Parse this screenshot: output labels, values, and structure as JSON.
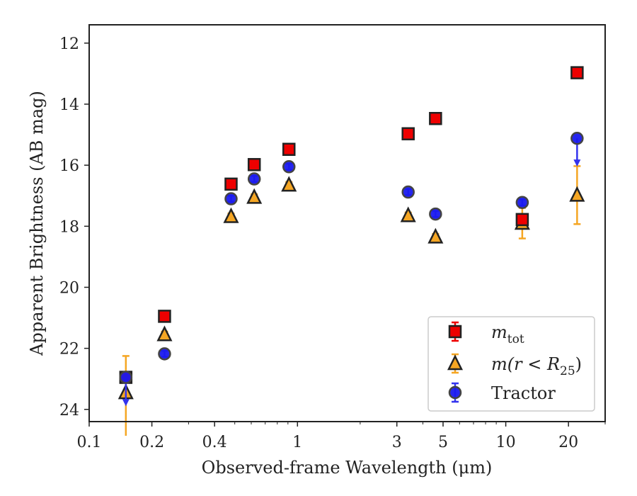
{
  "chart_data": {
    "type": "scatter",
    "xlabel": "Observed-frame Wavelength (μm)",
    "ylabel": "Apparent Brightness (AB mag)",
    "xscale": "log",
    "xlim": [
      0.1,
      30
    ],
    "ylim": [
      24.4,
      11.4
    ],
    "y_inverted": true,
    "x_ticks": [
      {
        "value": 0.1,
        "label": "0.1"
      },
      {
        "value": 0.2,
        "label": "0.2"
      },
      {
        "value": 0.4,
        "label": "0.4"
      },
      {
        "value": 1,
        "label": "1"
      },
      {
        "value": 3,
        "label": "3"
      },
      {
        "value": 5,
        "label": "5"
      },
      {
        "value": 10,
        "label": "10"
      },
      {
        "value": 20,
        "label": "20"
      }
    ],
    "y_ticks": [
      12,
      14,
      16,
      18,
      20,
      22,
      24
    ],
    "grid": false,
    "legend_position": "lower-right",
    "series": [
      {
        "name_main": "m",
        "name_sub": "tot",
        "marker": "square",
        "color": "#ee0000",
        "errcolor": "#ee0000",
        "points": [
          {
            "x": 0.15,
            "y": 22.95,
            "err": 0.1
          },
          {
            "x": 0.23,
            "y": 20.95,
            "err": 0.1
          },
          {
            "x": 0.48,
            "y": 16.62,
            "err": 0.1
          },
          {
            "x": 0.62,
            "y": 15.98,
            "err": 0.1
          },
          {
            "x": 0.91,
            "y": 15.48,
            "err": 0.1
          },
          {
            "x": 3.4,
            "y": 14.97,
            "err": 0.1
          },
          {
            "x": 4.6,
            "y": 14.47,
            "err": 0.1
          },
          {
            "x": 12.0,
            "y": 17.78,
            "err": 0.15
          },
          {
            "x": 22.0,
            "y": 12.97,
            "err": 0.1
          }
        ]
      },
      {
        "name_main": "m(r < R",
        "name_sub": "25",
        "name_tail": ")",
        "marker": "triangle",
        "color": "#f5a623",
        "errcolor": "#f5a623",
        "points": [
          {
            "x": 0.15,
            "y": 23.45,
            "err_low": 2.0,
            "err_high": 1.2
          },
          {
            "x": 0.23,
            "y": 21.55,
            "err": 0.1
          },
          {
            "x": 0.48,
            "y": 17.68,
            "err": 0.1
          },
          {
            "x": 0.62,
            "y": 17.05,
            "err": 0.1
          },
          {
            "x": 0.91,
            "y": 16.65,
            "err": 0.1
          },
          {
            "x": 3.4,
            "y": 17.65,
            "err": 0.1
          },
          {
            "x": 4.6,
            "y": 18.35,
            "err": 0.1
          },
          {
            "x": 12.0,
            "y": 17.9,
            "err_low": 0.5,
            "err_high": 0.5
          },
          {
            "x": 22.0,
            "y": 16.98,
            "err_low": 0.95,
            "err_high": 0.95
          }
        ]
      },
      {
        "name_main": "Tractor",
        "marker": "circle",
        "color": "#1a1aee",
        "errcolor": "#3333ee",
        "points": [
          {
            "x": 0.15,
            "y": 22.95,
            "upper_limit": true,
            "arrow_to": 23.85
          },
          {
            "x": 0.23,
            "y": 22.18,
            "err": 0.1
          },
          {
            "x": 0.48,
            "y": 17.1,
            "err": 0.1
          },
          {
            "x": 0.62,
            "y": 16.45,
            "err": 0.1
          },
          {
            "x": 0.91,
            "y": 16.05,
            "err": 0.1
          },
          {
            "x": 3.4,
            "y": 16.88,
            "err": 0.1
          },
          {
            "x": 4.6,
            "y": 17.6,
            "err": 0.1
          },
          {
            "x": 12.0,
            "y": 17.22,
            "err": 0.1
          },
          {
            "x": 22.0,
            "y": 15.12,
            "upper_limit": true,
            "arrow_to": 16.0
          }
        ]
      }
    ]
  }
}
